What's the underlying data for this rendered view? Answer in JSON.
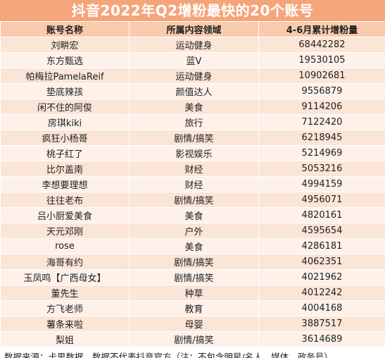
{
  "title": "抖音2022年Q2增粉最快的20个账号",
  "headers": {
    "col1": "账号名称",
    "col2": "所属内容领域",
    "col3": "4-6月累计增粉量"
  },
  "rows": [
    {
      "name": "刘畊宏",
      "field": "运动健身",
      "followers": "68442282"
    },
    {
      "name": "东方甄选",
      "field": "蓝V",
      "followers": "19530105"
    },
    {
      "name": "帕梅拉PamelaReif",
      "field": "运动健身",
      "followers": "10902681"
    },
    {
      "name": "垫底辣孩",
      "field": "颜值达人",
      "followers": "9556879"
    },
    {
      "name": "闲不住的阿俊",
      "field": "美食",
      "followers": "9114206"
    },
    {
      "name": "房琪kiki",
      "field": "旅行",
      "followers": "7122420"
    },
    {
      "name": "疯狂小杨哥",
      "field": "剧情/搞笑",
      "followers": "6218945"
    },
    {
      "name": "桃子红了",
      "field": "影视娱乐",
      "followers": "5214969"
    },
    {
      "name": "比尔盖南",
      "field": "财经",
      "followers": "5053216"
    },
    {
      "name": "李想要理想",
      "field": "财经",
      "followers": "4994159"
    },
    {
      "name": "往往老布",
      "field": "剧情/搞笑",
      "followers": "4956071"
    },
    {
      "name": "吕小厨爱美食",
      "field": "美食",
      "followers": "4820161"
    },
    {
      "name": "天元邓刚",
      "field": "户外",
      "followers": "4595654"
    },
    {
      "name": "rose",
      "field": "美食",
      "followers": "4286181"
    },
    {
      "name": "海哥有约",
      "field": "剧情/搞笑",
      "followers": "4062351"
    },
    {
      "name": "玉凤鸣【广西母女】",
      "field": "剧情/搞笑",
      "followers": "4021962"
    },
    {
      "name": "董先生",
      "field": "种草",
      "followers": "4012242"
    },
    {
      "name": "方飞老师",
      "field": "教育",
      "followers": "4004168"
    },
    {
      "name": "薯条来啦",
      "field": "母婴",
      "followers": "3887517"
    },
    {
      "name": "梨姐",
      "field": "剧情/搞笑",
      "followers": "3614689"
    }
  ],
  "footnote": "数据来源：卡思数据，数据不代表抖音官方（注：不包含明星/名人、媒体、政务号）",
  "colors": {
    "title_bg": "#f5a57a",
    "header_bg": "#f8cbad",
    "row_odd": "#fbe5d6",
    "row_even": "#fdf1e9"
  }
}
